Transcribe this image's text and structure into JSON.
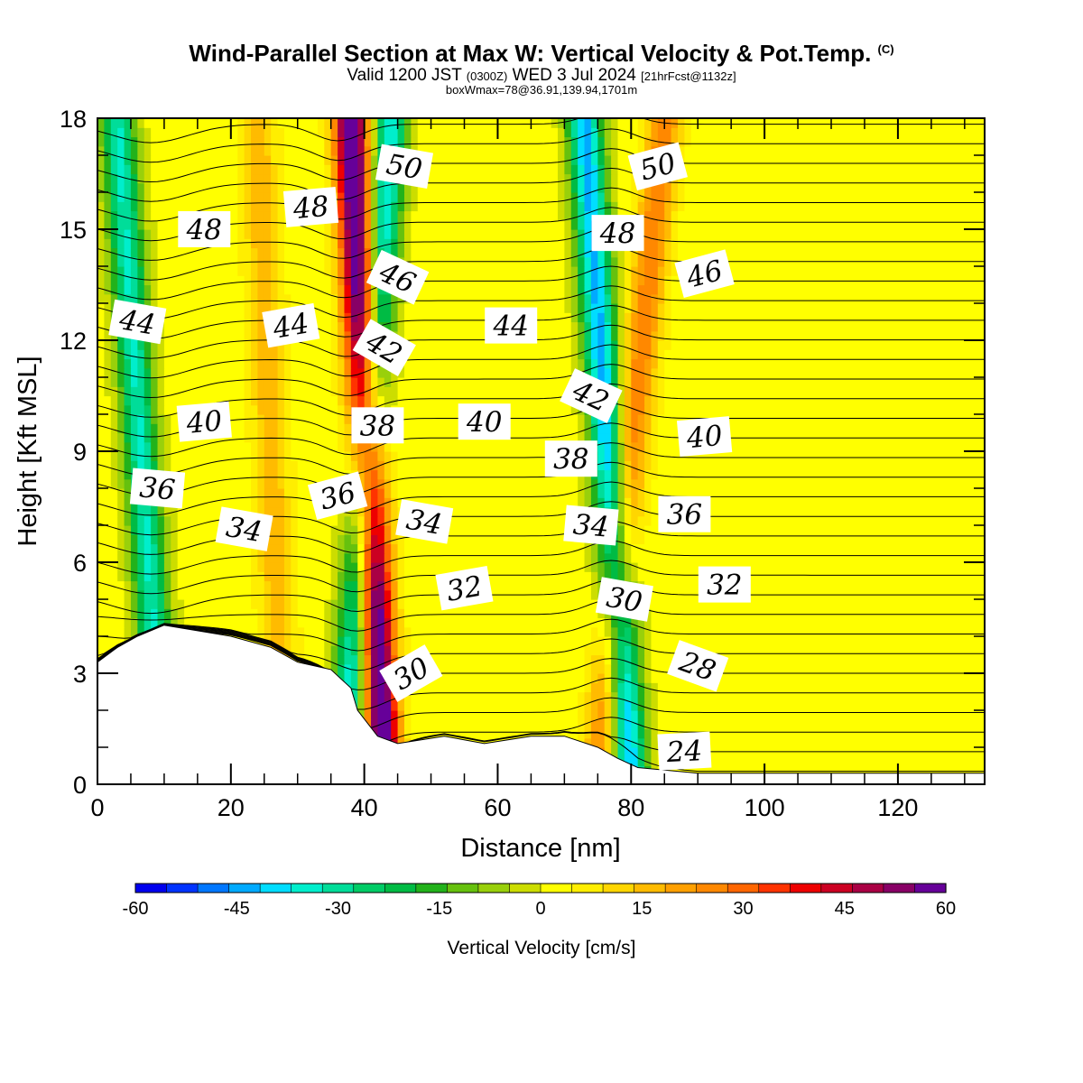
{
  "header": {
    "title": "Wind-Parallel Section at Max W: Vertical Velocity & Pot.Temp.",
    "copyright": "(C)",
    "valid_prefix": "Valid 1200 JST",
    "valid_utc": "(0300Z)",
    "valid_date": "WED 3 Jul 2024",
    "forecast_info": "[21hrFcst@1132z]",
    "box_info": "boxWmax=78@36.91,139.94,1701m"
  },
  "chart_data": {
    "type": "heatmap",
    "xlabel": "Distance [nm]",
    "ylabel": "Height [Kft MSL]",
    "xlim": [
      0,
      133
    ],
    "ylim": [
      0,
      18
    ],
    "x_ticks": [
      "0",
      "20",
      "40",
      "60",
      "80",
      "100",
      "120"
    ],
    "y_ticks": [
      "0",
      "3",
      "6",
      "9",
      "12",
      "15",
      "18"
    ],
    "colorbar": {
      "label": "Vertical Velocity [cm/s]",
      "range": [
        -60,
        60
      ],
      "tick_labels": [
        "-60",
        "-45",
        "-30",
        "-15",
        "0",
        "15",
        "30",
        "45",
        "60"
      ],
      "colors": [
        "#0000ee",
        "#0033ff",
        "#0077ff",
        "#00aaff",
        "#00ddff",
        "#00eecc",
        "#00dd99",
        "#00cc66",
        "#00bb44",
        "#22b21b",
        "#66c10e",
        "#99d00b",
        "#ccdd00",
        "#ffff00",
        "#ffee00",
        "#ffd600",
        "#ffbb00",
        "#ffa000",
        "#ff8800",
        "#ff6600",
        "#ff3300",
        "#ee0000",
        "#cc0022",
        "#aa0044",
        "#880066",
        "#660099"
      ]
    },
    "terrain_kft": [
      [
        0,
        3.3
      ],
      [
        3,
        3.7
      ],
      [
        6,
        4.0
      ],
      [
        10,
        4.3
      ],
      [
        20,
        4.0
      ],
      [
        26,
        3.7
      ],
      [
        30,
        3.3
      ],
      [
        35,
        3.1
      ],
      [
        38,
        2.6
      ],
      [
        39,
        2.0
      ],
      [
        42,
        1.3
      ],
      [
        45,
        1.1
      ],
      [
        52,
        1.3
      ],
      [
        58,
        1.1
      ],
      [
        65,
        1.3
      ],
      [
        70,
        1.3
      ],
      [
        75,
        1.0
      ],
      [
        78,
        0.7
      ],
      [
        81,
        0.45
      ],
      [
        90,
        0.3
      ],
      [
        133,
        0.3
      ]
    ],
    "vertical_velocity_features": [
      {
        "kind": "updraft",
        "x_bottom": 43,
        "x_top": 38,
        "peak_cms": 65
      },
      {
        "kind": "downdraft",
        "x_bottom": 37,
        "x_top": 44,
        "peak_cms": -40
      },
      {
        "kind": "updraft",
        "x_bottom": 75,
        "x_top": 85,
        "peak_cms": 25
      },
      {
        "kind": "downdraft",
        "x_bottom": 80,
        "x_top": 73,
        "peak_cms": -45
      },
      {
        "kind": "downdraft",
        "x_bottom": 10,
        "x_top": 3,
        "peak_cms": -35
      },
      {
        "kind": "updraft",
        "x_bottom": 28,
        "x_top": 24,
        "peak_cms": 15
      }
    ],
    "potential_temperature_labels": [
      {
        "x": 46,
        "y": 16.7,
        "text": "50",
        "rot": 10
      },
      {
        "x": 84,
        "y": 16.7,
        "text": "50",
        "rot": -15
      },
      {
        "x": 16,
        "y": 15.0,
        "text": "48",
        "rot": 0
      },
      {
        "x": 32,
        "y": 15.6,
        "text": "48",
        "rot": -5
      },
      {
        "x": 78,
        "y": 14.9,
        "text": "48",
        "rot": 0
      },
      {
        "x": 45,
        "y": 13.7,
        "text": "46",
        "rot": 25
      },
      {
        "x": 91,
        "y": 13.8,
        "text": "46",
        "rot": -15
      },
      {
        "x": 6,
        "y": 12.5,
        "text": "44",
        "rot": 10
      },
      {
        "x": 29,
        "y": 12.4,
        "text": "44",
        "rot": -10
      },
      {
        "x": 62,
        "y": 12.4,
        "text": "44",
        "rot": 0
      },
      {
        "x": 43,
        "y": 11.8,
        "text": "42",
        "rot": 30
      },
      {
        "x": 74,
        "y": 10.5,
        "text": "42",
        "rot": 25
      },
      {
        "x": 16,
        "y": 9.8,
        "text": "40",
        "rot": -5
      },
      {
        "x": 58,
        "y": 9.8,
        "text": "40",
        "rot": 0
      },
      {
        "x": 91,
        "y": 9.4,
        "text": "40",
        "rot": -5
      },
      {
        "x": 42,
        "y": 9.7,
        "text": "38",
        "rot": 0
      },
      {
        "x": 71,
        "y": 8.8,
        "text": "38",
        "rot": 0
      },
      {
        "x": 9,
        "y": 8.0,
        "text": "36",
        "rot": 5
      },
      {
        "x": 36,
        "y": 7.8,
        "text": "36",
        "rot": -15
      },
      {
        "x": 88,
        "y": 7.3,
        "text": "36",
        "rot": 0
      },
      {
        "x": 22,
        "y": 6.9,
        "text": "34",
        "rot": 10
      },
      {
        "x": 49,
        "y": 7.1,
        "text": "34",
        "rot": 10
      },
      {
        "x": 74,
        "y": 7.0,
        "text": "34",
        "rot": 5
      },
      {
        "x": 55,
        "y": 5.3,
        "text": "32",
        "rot": -10
      },
      {
        "x": 94,
        "y": 5.4,
        "text": "32",
        "rot": 0
      },
      {
        "x": 79,
        "y": 5.0,
        "text": "30",
        "rot": 10
      },
      {
        "x": 47,
        "y": 3.0,
        "text": "30",
        "rot": -30
      },
      {
        "x": 90,
        "y": 3.2,
        "text": "28",
        "rot": 20
      },
      {
        "x": 88,
        "y": 0.9,
        "text": "24",
        "rot": -3
      }
    ]
  }
}
